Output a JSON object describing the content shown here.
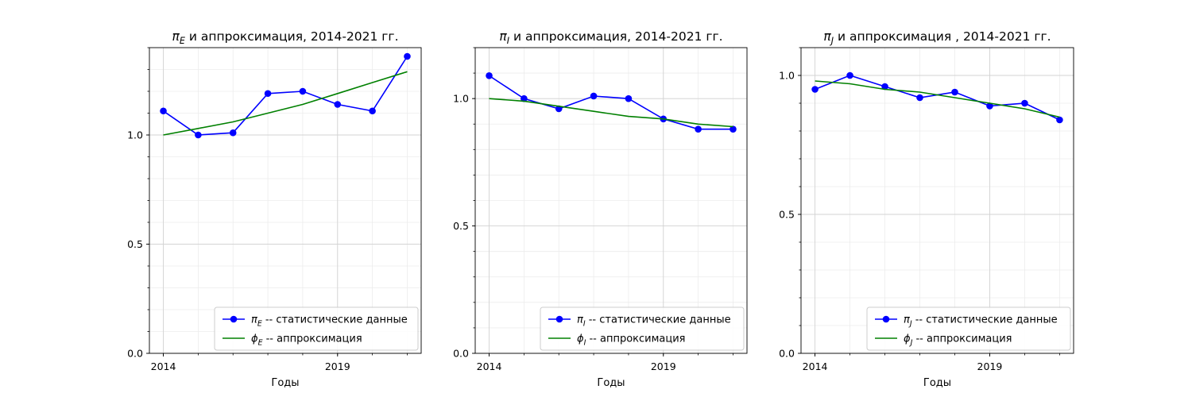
{
  "figure": {
    "background": "#ffffff"
  },
  "colors": {
    "data": "#0000ff",
    "approx": "#008000",
    "grid_major": "#d3d3d3",
    "grid_minor": "#ececec"
  },
  "chart_data": [
    {
      "type": "line",
      "title_symbol": "π",
      "title_sub": "E",
      "title_rest": "  и аппроксимация, 2014-2021 гг.",
      "xlabel": "Годы",
      "ylabel": "",
      "xlim": [
        2013.6,
        2021.4
      ],
      "ylim": [
        0.0,
        1.4
      ],
      "x_ticks": [
        2014,
        2019
      ],
      "x_tick_labels": [
        "2014",
        "2019"
      ],
      "y_ticks": [
        0.0,
        0.5,
        1.0
      ],
      "y_tick_labels": [
        "0.0",
        "0.5",
        "1.0"
      ],
      "grid": true,
      "legend_position": "lower-right",
      "x": [
        2014,
        2015,
        2016,
        2017,
        2018,
        2019,
        2020,
        2021
      ],
      "series": [
        {
          "name_symbol": "π",
          "name_sub": "E",
          "name_rest": " -- статистические данные",
          "role": "data",
          "marker": "circle",
          "values": [
            1.11,
            1.0,
            1.01,
            1.19,
            1.2,
            1.14,
            1.11,
            1.36
          ]
        },
        {
          "name_symbol": "ϕ",
          "name_sub": "E",
          "name_rest": " -- аппроксимация",
          "role": "approx",
          "marker": "none",
          "values": [
            1.0,
            1.03,
            1.06,
            1.1,
            1.14,
            1.19,
            1.24,
            1.29
          ]
        }
      ]
    },
    {
      "type": "line",
      "title_symbol": "π",
      "title_sub": "I",
      "title_rest": "  и аппроксимация, 2014-2021 гг.",
      "xlabel": "Годы",
      "ylabel": "",
      "xlim": [
        2013.6,
        2021.4
      ],
      "ylim": [
        0.0,
        1.2
      ],
      "x_ticks": [
        2014,
        2019
      ],
      "x_tick_labels": [
        "2014",
        "2019"
      ],
      "y_ticks": [
        0.0,
        0.5,
        1.0
      ],
      "y_tick_labels": [
        "0.0",
        "0.5",
        "1.0"
      ],
      "grid": true,
      "legend_position": "lower-right",
      "x": [
        2014,
        2015,
        2016,
        2017,
        2018,
        2019,
        2020,
        2021
      ],
      "series": [
        {
          "name_symbol": "π",
          "name_sub": "I",
          "name_rest": " -- статистические данные",
          "role": "data",
          "marker": "circle",
          "values": [
            1.09,
            1.0,
            0.96,
            1.01,
            1.0,
            0.92,
            0.88,
            0.88
          ]
        },
        {
          "name_symbol": "ϕ",
          "name_sub": "I",
          "name_rest": " -- аппроксимация",
          "role": "approx",
          "marker": "none",
          "values": [
            1.0,
            0.99,
            0.97,
            0.95,
            0.93,
            0.92,
            0.9,
            0.89
          ]
        }
      ]
    },
    {
      "type": "line",
      "title_symbol": "π",
      "title_sub": "J",
      "title_rest": "  и аппроксимация , 2014-2021 гг.",
      "xlabel": "Годы",
      "ylabel": "",
      "xlim": [
        2013.6,
        2021.4
      ],
      "ylim": [
        0.0,
        1.1
      ],
      "x_ticks": [
        2014,
        2019
      ],
      "x_tick_labels": [
        "2014",
        "2019"
      ],
      "y_ticks": [
        0.0,
        0.5,
        1.0
      ],
      "y_tick_labels": [
        "0.0",
        "0.5",
        "1.0"
      ],
      "grid": true,
      "legend_position": "lower-right",
      "x": [
        2014,
        2015,
        2016,
        2017,
        2018,
        2019,
        2020,
        2021
      ],
      "series": [
        {
          "name_symbol": "π",
          "name_sub": "J",
          "name_rest": " -- статистические данные",
          "role": "data",
          "marker": "circle",
          "values": [
            0.95,
            1.0,
            0.96,
            0.92,
            0.94,
            0.89,
            0.9,
            0.84
          ]
        },
        {
          "name_symbol": "ϕ",
          "name_sub": "J",
          "name_rest": " -- аппроксимация",
          "role": "approx",
          "marker": "none",
          "values": [
            0.98,
            0.97,
            0.95,
            0.94,
            0.92,
            0.9,
            0.88,
            0.85
          ]
        }
      ]
    }
  ]
}
